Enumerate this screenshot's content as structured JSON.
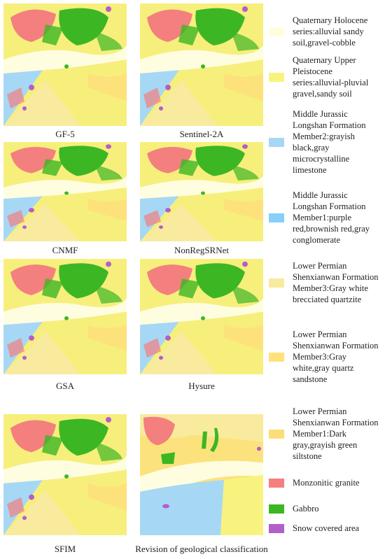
{
  "panels": [
    {
      "caption": "GF-5"
    },
    {
      "caption": "Sentinel-2A"
    },
    {
      "caption": "CNMF"
    },
    {
      "caption": "NonRegSRNet"
    },
    {
      "caption": "GSA"
    },
    {
      "caption": "Hysure"
    },
    {
      "caption": "SFIM"
    },
    {
      "caption": "Revision of geological classification"
    }
  ],
  "legend": [
    {
      "label": "Quaternary Holocene series:alluvial sandy soil,gravel-cobble",
      "color": "#fffde0"
    },
    {
      "label": "Quaternary Upper Pleistocene series:alluvial-pluvial gravel,sandy soil",
      "color": "#f8f37e"
    },
    {
      "label": "Middle Jurassic Longshan Formation Member2:grayish black,gray microcrystalline limestone",
      "color": "#a6d8f5"
    },
    {
      "label": "Middle Jurassic Longshan Formation Member1:purple red,brownish red,gray conglomerate",
      "color": "#86d0f7"
    },
    {
      "label": "Lower Permian Shenxianwan Formation Member3:Gray white brecciated quartzite",
      "color": "#f8eb9e"
    },
    {
      "label": "Lower Permian Shenxianwan Formation Member3:Gray white,gray quartz sandstone",
      "color": "#fde27c"
    },
    {
      "label": "Lower Permian Shenxianwan Formation Member1:Dark gray,grayish green siltstone",
      "color": "#fcde78"
    },
    {
      "label": "Monzonitic granite",
      "color": "#f47f7f"
    },
    {
      "label": "Gabbro",
      "color": "#3db623"
    },
    {
      "label": "Snow covered area",
      "color": "#b25fca"
    }
  ]
}
